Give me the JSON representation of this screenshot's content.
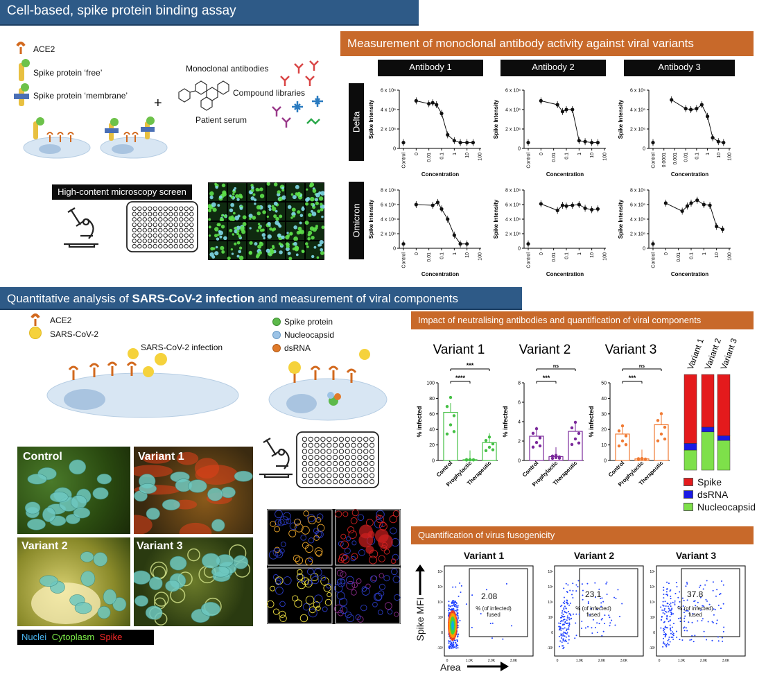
{
  "top": {
    "banner": "Cell-based, spike protein binding assay",
    "legend": [
      "ACE2",
      "Spike protein ‘free’",
      "Spike protein ‘membrane’"
    ],
    "plus": "+",
    "screen_labels": [
      "Monoclonal antibodies",
      "Compound libraries",
      "Patient serum"
    ],
    "hcs_label": "High-content microscopy screen"
  },
  "mab": {
    "banner": "Measurement of monoclonal antibody activity against viral variants",
    "antibodies": [
      "Antibody 1",
      "Antibody 2",
      "Antibody 3"
    ],
    "rows": [
      "Delta",
      "Omicron"
    ],
    "ylabel": "Spike Intensity",
    "xlabel": "Concentration"
  },
  "bottom": {
    "banner_prefix": "Quantitative analysis of ",
    "banner_bold": "SARS-CoV-2 infection",
    "banner_suffix": " and measurement of viral components",
    "legend_left": [
      "ACE2",
      "SARS-CoV-2"
    ],
    "infection_label": "SARS-CoV-2 infection",
    "legend_right": [
      "Spike protein",
      "Nucleocapsid",
      "dsRNA"
    ],
    "micro_labels": [
      "Control",
      "Variant 1",
      "Variant 2",
      "Variant 3"
    ],
    "stain_legend": [
      "Nuclei",
      "Cytoplasm",
      "Spike"
    ]
  },
  "impact": {
    "banner": "Impact of neutralising antibodies and quantification of viral components",
    "variants": [
      "Variant 1",
      "Variant 2",
      "Variant 3"
    ],
    "ylabel": "% infected",
    "categories": [
      "Control",
      "Prophylactic",
      "Therapeutic"
    ],
    "bar_legend": [
      "Spike",
      "dsRNA",
      "Nucleocapsid"
    ],
    "colors": {
      "variant1": "#44c044",
      "variant2": "#7b2a9b",
      "variant3": "#f07a33",
      "spike": "#e41a1c",
      "dsrna": "#1a1ae4",
      "nucleo": "#7ee04a"
    }
  },
  "fuso": {
    "banner": "Quantification of virus fusogenicity",
    "panels": [
      {
        "title": "Variant 1",
        "value": "2.08"
      },
      {
        "title": "Variant 2",
        "value": "23.1"
      },
      {
        "title": "Variant 3",
        "value": "37.8"
      }
    ],
    "gate_label": [
      "% (of infected)",
      "fused"
    ],
    "ylabel": "Spike MFI",
    "xlabel": "Area"
  },
  "chart_data": [
    {
      "type": "scatter",
      "panel": "Antibody 1 / Delta",
      "xlabel": "Concentration",
      "ylabel": "Spike Intensity",
      "ylim": [
        0,
        6000000
      ],
      "x_ticks": [
        "Control",
        "0",
        "0.01",
        "0.1",
        "1",
        "10",
        "100"
      ],
      "y_ticks": [
        "0",
        "2 x 10⁶",
        "4 x 10⁶",
        "6 x 10⁶"
      ],
      "x": [
        0.0,
        0.001,
        0.01,
        0.02,
        0.04,
        0.1,
        0.3,
        1,
        3,
        10,
        30
      ],
      "y": [
        600000,
        4900000,
        4600000,
        4700000,
        4500000,
        3600000,
        1400000,
        800000,
        600000,
        600000,
        600000
      ],
      "x_is_control_first": true
    },
    {
      "type": "scatter",
      "panel": "Antibody 2 / Delta",
      "xlabel": "Concentration",
      "ylabel": "Spike Intensity",
      "ylim": [
        0,
        6000000
      ],
      "x_ticks": [
        "Control",
        "0",
        "0.01",
        "0.1",
        "1",
        "10",
        "100"
      ],
      "y_ticks": [
        "0",
        "2 x 10⁶",
        "4 x 10⁶",
        "6 x 10⁶"
      ],
      "x": [
        0.0,
        0.001,
        0.02,
        0.05,
        0.1,
        0.3,
        1,
        3,
        10,
        30
      ],
      "y": [
        600000,
        4900000,
        4500000,
        3800000,
        4000000,
        4000000,
        800000,
        700000,
        600000,
        600000
      ],
      "x_is_control_first": true
    },
    {
      "type": "scatter",
      "panel": "Antibody 3 / Delta",
      "xlabel": "Concentration",
      "ylabel": "Spike Intensity",
      "ylim": [
        0,
        6000000
      ],
      "x_ticks": [
        "Control",
        "0.0001",
        "0.001",
        "0.01",
        "0.1",
        "1",
        "10",
        "100"
      ],
      "y_ticks": [
        "0",
        "2 x 10⁶",
        "4 x 10⁶",
        "6 x 10⁶"
      ],
      "x": [
        0.0,
        0.0005,
        0.01,
        0.03,
        0.1,
        0.3,
        1,
        3,
        10,
        30
      ],
      "y": [
        600000,
        5000000,
        4100000,
        4000000,
        4100000,
        4500000,
        3300000,
        1100000,
        700000,
        600000
      ],
      "x_is_control_first": true
    },
    {
      "type": "scatter",
      "panel": "Antibody 1 / Omicron",
      "xlabel": "Concentration",
      "ylabel": "Spike Intensity",
      "ylim": [
        0,
        8000000
      ],
      "x_ticks": [
        "Control",
        "0",
        "0.01",
        "0.1",
        "1",
        "10",
        "100"
      ],
      "y_ticks": [
        "0",
        "2 x 10⁶",
        "4 x 10⁶",
        "6 x 10⁶",
        "8 x 10⁶"
      ],
      "x": [
        0.0,
        0.001,
        0.02,
        0.05,
        0.1,
        0.3,
        1,
        3,
        10
      ],
      "y": [
        600000,
        6000000,
        5900000,
        6300000,
        5400000,
        4000000,
        1800000,
        600000,
        600000
      ],
      "x_is_control_first": true
    },
    {
      "type": "scatter",
      "panel": "Antibody 2 / Omicron",
      "xlabel": "Concentration",
      "ylabel": "Spike Intensity",
      "ylim": [
        0,
        8000000
      ],
      "x_ticks": [
        "Control",
        "0",
        "0.01",
        "0.1",
        "1",
        "10",
        "100"
      ],
      "y_ticks": [
        "0",
        "2 x 10⁶",
        "4 x 10⁶",
        "6 x 10⁶",
        "8 x 10⁶"
      ],
      "x": [
        0.0,
        0.001,
        0.02,
        0.05,
        0.1,
        0.3,
        1,
        3,
        10,
        30
      ],
      "y": [
        600000,
        6100000,
        5200000,
        5900000,
        5800000,
        5900000,
        6000000,
        5500000,
        5300000,
        5400000
      ],
      "x_is_control_first": true
    },
    {
      "type": "scatter",
      "panel": "Antibody 3 / Omicron",
      "xlabel": "Concentration",
      "ylabel": "Spike Intensity",
      "ylim": [
        0,
        8000000
      ],
      "x_ticks": [
        "Control",
        "0",
        "0.01",
        "0.1",
        "1",
        "10",
        "100"
      ],
      "y_ticks": [
        "0",
        "2 x 10⁶",
        "4 x 10⁶",
        "6 x 10⁶",
        "8 x 10⁶"
      ],
      "x": [
        0.0,
        0.001,
        0.02,
        0.05,
        0.1,
        0.3,
        1,
        3,
        10,
        30
      ],
      "y": [
        600000,
        6200000,
        5100000,
        5800000,
        6200000,
        6600000,
        6000000,
        5900000,
        3000000,
        2600000
      ],
      "x_is_control_first": true
    },
    {
      "type": "bar",
      "title": "Variant 1",
      "ylabel": "% infected",
      "categories": [
        "Control",
        "Prophylactic",
        "Therapeutic"
      ],
      "values": [
        62,
        1,
        23
      ],
      "ylim": [
        0,
        100
      ],
      "y_ticks": [
        "0",
        "20",
        "40",
        "60",
        "80",
        "100"
      ],
      "significance": [
        {
          "pair": [
            "Control",
            "Prophylactic"
          ],
          "label": "****"
        },
        {
          "pair": [
            "Control",
            "Therapeutic"
          ],
          "label": "***"
        }
      ]
    },
    {
      "type": "bar",
      "title": "Variant 2",
      "ylabel": "% infected",
      "categories": [
        "Control",
        "Prophylactic",
        "Therapeutic"
      ],
      "values": [
        2.5,
        0.4,
        3.0
      ],
      "ylim": [
        0,
        8
      ],
      "y_ticks": [
        "0",
        "2",
        "4",
        "6",
        "8"
      ],
      "significance": [
        {
          "pair": [
            "Control",
            "Prophylactic"
          ],
          "label": "***"
        },
        {
          "pair": [
            "Control",
            "Therapeutic"
          ],
          "label": "ns"
        }
      ]
    },
    {
      "type": "bar",
      "title": "Variant 3",
      "ylabel": "% infected",
      "categories": [
        "Control",
        "Prophylactic",
        "Therapeutic"
      ],
      "values": [
        17,
        1,
        23
      ],
      "ylim": [
        0,
        50
      ],
      "y_ticks": [
        "0",
        "10",
        "20",
        "30",
        "40",
        "50"
      ],
      "significance": [
        {
          "pair": [
            "Control",
            "Prophylactic"
          ],
          "label": "***"
        },
        {
          "pair": [
            "Control",
            "Therapeutic"
          ],
          "label": "ns"
        }
      ]
    },
    {
      "type": "bar",
      "stacked": true,
      "categories": [
        "Variant 1",
        "Variant 2",
        "Variant 3"
      ],
      "series": [
        {
          "name": "Nucleocapsid",
          "values": [
            21,
            40,
            31
          ]
        },
        {
          "name": "dsRNA",
          "values": [
            7,
            5,
            5
          ]
        },
        {
          "name": "Spike",
          "values": [
            72,
            55,
            64
          ]
        }
      ]
    }
  ]
}
